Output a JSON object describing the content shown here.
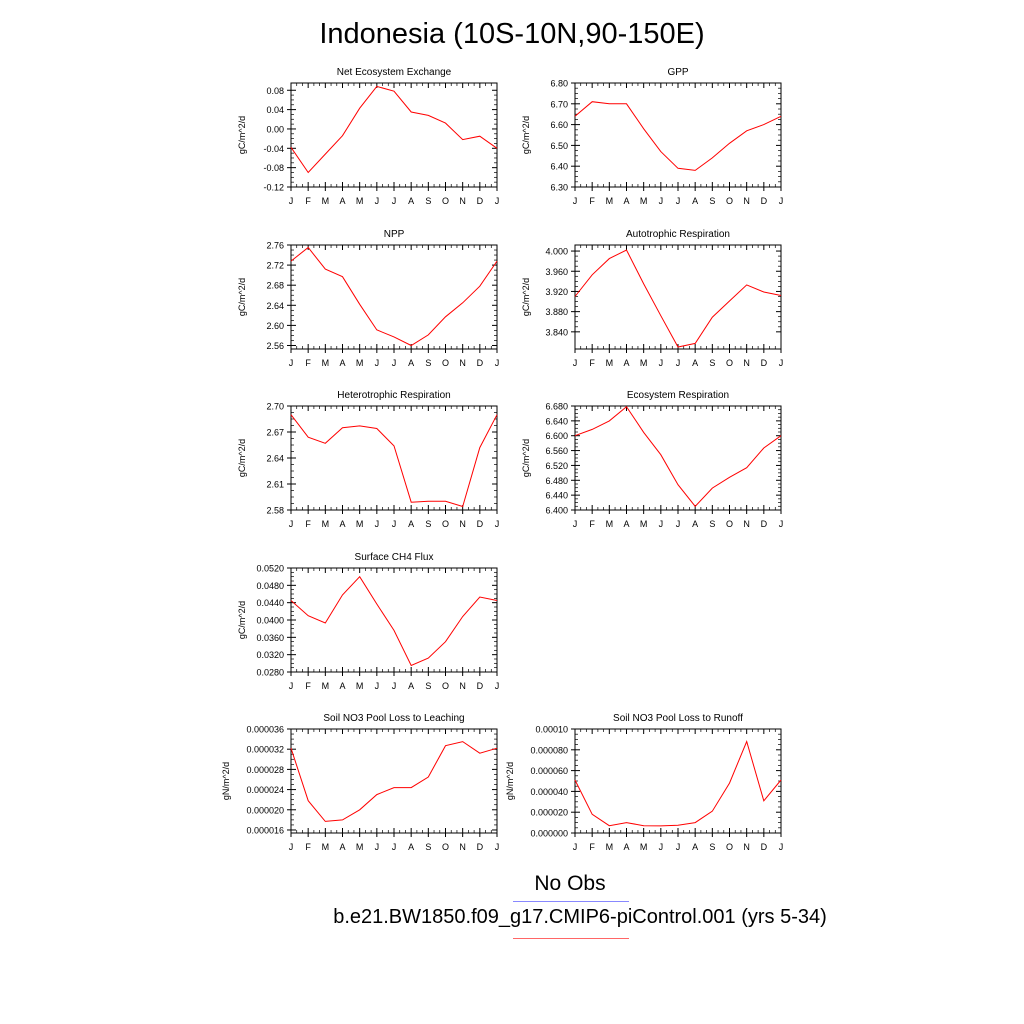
{
  "title": "Indonesia (10S-10N,90-150E)",
  "legend": {
    "no_obs": "No Obs",
    "model": "b.e21.BW1850.f09_g17.CMIP6-piControl.001 (yrs 5-34)",
    "no_obs_color": "#8888ff",
    "model_color": "#ff6666"
  },
  "months": [
    "J",
    "F",
    "M",
    "A",
    "M",
    "J",
    "J",
    "A",
    "S",
    "O",
    "N",
    "D",
    "J"
  ],
  "line_color": "#ff0000",
  "chart_data": [
    {
      "type": "line",
      "title": "Net Ecosystem Exchange",
      "ylabel": "gC/m^2/d",
      "ylim": [
        -0.12,
        0.095
      ],
      "yticks": [
        -0.12,
        -0.08,
        -0.04,
        0.0,
        0.04,
        0.08
      ],
      "ytick_labels": [
        "-0.12",
        "-0.08",
        "-0.04",
        "0.00",
        "0.04",
        "0.08"
      ],
      "values": [
        -0.038,
        -0.09,
        -0.052,
        -0.014,
        0.043,
        0.088,
        0.078,
        0.035,
        0.028,
        0.012,
        -0.022,
        -0.015,
        -0.04
      ]
    },
    {
      "type": "line",
      "title": "GPP",
      "ylabel": "gC/m^2/d",
      "ylim": [
        6.3,
        6.8
      ],
      "yticks": [
        6.3,
        6.4,
        6.5,
        6.6,
        6.7,
        6.8
      ],
      "ytick_labels": [
        "6.30",
        "6.40",
        "6.50",
        "6.60",
        "6.70",
        "6.80"
      ],
      "values": [
        6.64,
        6.71,
        6.7,
        6.7,
        6.58,
        6.47,
        6.39,
        6.38,
        6.44,
        6.51,
        6.57,
        6.6,
        6.64
      ]
    },
    {
      "type": "line",
      "title": "NPP",
      "ylabel": "gC/m^2/d",
      "ylim": [
        2.553,
        2.76
      ],
      "yticks": [
        2.56,
        2.6,
        2.64,
        2.68,
        2.72,
        2.76
      ],
      "ytick_labels": [
        "2.56",
        "2.60",
        "2.64",
        "2.68",
        "2.72",
        "2.76"
      ],
      "values": [
        2.728,
        2.755,
        2.712,
        2.697,
        2.642,
        2.591,
        2.577,
        2.56,
        2.581,
        2.617,
        2.645,
        2.678,
        2.728
      ]
    },
    {
      "type": "line",
      "title": "Autotrophic Respiration",
      "ylabel": "gC/m^2/d",
      "ylim": [
        3.806,
        4.012
      ],
      "yticks": [
        3.84,
        3.88,
        3.92,
        3.96,
        4.0
      ],
      "ytick_labels": [
        "3.840",
        "3.880",
        "3.920",
        "3.960",
        "4.000"
      ],
      "values": [
        3.91,
        3.953,
        3.985,
        4.002,
        3.935,
        3.872,
        3.81,
        3.817,
        3.869,
        3.901,
        3.933,
        3.919,
        3.912
      ]
    },
    {
      "type": "line",
      "title": "Heterotrophic Respiration",
      "ylabel": "gC/m^2/d",
      "ylim": [
        2.58,
        2.7
      ],
      "yticks": [
        2.58,
        2.61,
        2.64,
        2.67,
        2.7
      ],
      "ytick_labels": [
        "2.58",
        "2.61",
        "2.64",
        "2.67",
        "2.70"
      ],
      "values": [
        2.69,
        2.664,
        2.657,
        2.675,
        2.677,
        2.674,
        2.654,
        2.589,
        2.59,
        2.59,
        2.584,
        2.652,
        2.69
      ]
    },
    {
      "type": "line",
      "title": "Ecosystem Respiration",
      "ylabel": "gC/m^2/d",
      "ylim": [
        6.4,
        6.68
      ],
      "yticks": [
        6.4,
        6.44,
        6.48,
        6.52,
        6.56,
        6.6,
        6.64,
        6.68
      ],
      "ytick_labels": [
        "6.400",
        "6.440",
        "6.480",
        "6.520",
        "6.560",
        "6.600",
        "6.640",
        "6.680"
      ],
      "values": [
        6.6,
        6.617,
        6.64,
        6.678,
        6.609,
        6.549,
        6.468,
        6.41,
        6.459,
        6.488,
        6.514,
        6.567,
        6.6
      ]
    },
    {
      "type": "line",
      "title": "Surface CH4 Flux",
      "ylabel": "gC/m^2/d",
      "ylim": [
        0.028,
        0.052
      ],
      "yticks": [
        0.028,
        0.032,
        0.036,
        0.04,
        0.044,
        0.048,
        0.052
      ],
      "ytick_labels": [
        "0.0280",
        "0.0320",
        "0.0360",
        "0.0400",
        "0.0440",
        "0.0480",
        "0.0520"
      ],
      "values": [
        0.0445,
        0.041,
        0.0393,
        0.0458,
        0.05,
        0.0437,
        0.0376,
        0.0295,
        0.0312,
        0.035,
        0.0408,
        0.0453,
        0.0445
      ]
    },
    {
      "type": "line",
      "title": "Soil NO3 Pool Loss to Leaching",
      "ylabel": "gN/m^2/d",
      "ylim": [
        1.54e-05,
        3.6e-05
      ],
      "yticks": [
        1.6e-05,
        2e-05,
        2.4e-05,
        2.8e-05,
        3.2e-05,
        3.6e-05
      ],
      "ytick_labels": [
        "0.000016",
        "0.000020",
        "0.000024",
        "0.000028",
        "0.000032",
        "0.000036"
      ],
      "values": [
        3.22e-05,
        2.18e-05,
        1.77e-05,
        1.8e-05,
        2e-05,
        2.3e-05,
        2.44e-05,
        2.44e-05,
        2.65e-05,
        3.27e-05,
        3.35e-05,
        3.12e-05,
        3.22e-05
      ]
    },
    {
      "type": "line",
      "title": "Soil NO3 Pool Loss to Runoff",
      "ylabel": "gN/m^2/d",
      "ylim": [
        0.0,
        0.0001
      ],
      "yticks": [
        0.0,
        2e-05,
        4e-05,
        6e-05,
        8e-05,
        0.0001
      ],
      "ytick_labels": [
        "0.000000",
        "0.000020",
        "0.000040",
        "0.000060",
        "0.000080",
        "0.00010"
      ],
      "values": [
        5.1e-05,
        1.8e-05,
        7e-06,
        1e-05,
        7e-06,
        6.8e-06,
        7.5e-06,
        1e-05,
        2.1e-05,
        4.8e-05,
        8.8e-05,
        3.1e-05,
        5.1e-05
      ]
    }
  ]
}
